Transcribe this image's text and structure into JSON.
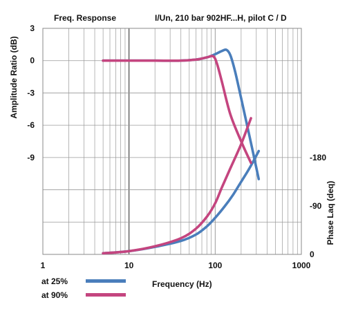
{
  "chart_data": {
    "type": "line",
    "title": "Freq. Response",
    "subtitle": "I/Un, 210 bar 902HF...H, pilot C / D",
    "xlabel": "Frequency (Hz)",
    "ylabel": "Amplitude Ratio (dB)",
    "y2label": "Phase Laq (deq)",
    "x_scale": "log",
    "xlim": [
      1,
      1000
    ],
    "x_ticks": [
      "1",
      "10",
      "100",
      "1000"
    ],
    "ylim": [
      -18,
      3
    ],
    "y_ticks": [
      "3",
      "0",
      "-3",
      "-6",
      "-9"
    ],
    "y2_ticks": [
      "-180",
      "-90",
      "0"
    ],
    "grid": true,
    "legend_position": "bottom-left",
    "series": [
      {
        "name": "at 25%",
        "color": "#4a7ebb",
        "amplitude": {
          "x": [
            5,
            10,
            20,
            40,
            60,
            80,
            100,
            120,
            135,
            150,
            170,
            200,
            250,
            320
          ],
          "y": [
            0,
            0,
            0,
            0,
            0.1,
            0.3,
            0.6,
            0.9,
            1.0,
            0.5,
            -1.0,
            -3.5,
            -7.0,
            -11.0
          ]
        },
        "phase": {
          "x": [
            5,
            10,
            20,
            40,
            60,
            80,
            100,
            130,
            160,
            200,
            250,
            320
          ],
          "y": [
            -2,
            -6,
            -14,
            -25,
            -37,
            -52,
            -68,
            -90,
            -110,
            -135,
            -160,
            -192
          ]
        }
      },
      {
        "name": "at 90%",
        "color": "#c4457f",
        "amplitude": {
          "x": [
            5,
            10,
            20,
            40,
            60,
            80,
            95,
            105,
            120,
            150,
            200,
            260
          ],
          "y": [
            0,
            0,
            0,
            0,
            0.1,
            0.3,
            0.4,
            -0.3,
            -2.0,
            -5.0,
            -7.5,
            -9.5
          ]
        },
        "phase": {
          "x": [
            5,
            10,
            20,
            40,
            60,
            80,
            100,
            120,
            150,
            200,
            260
          ],
          "y": [
            -2,
            -6,
            -15,
            -30,
            -48,
            -70,
            -95,
            -125,
            -160,
            -205,
            -253
          ]
        }
      }
    ]
  }
}
